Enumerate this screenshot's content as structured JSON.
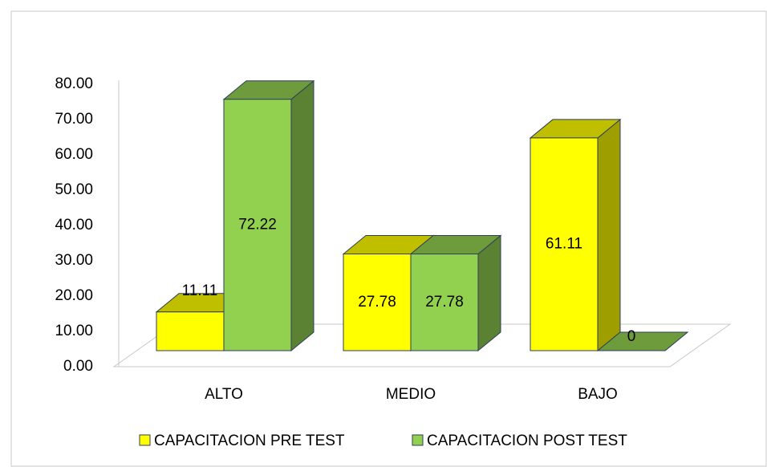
{
  "chart_data": {
    "type": "bar3d",
    "categories": [
      "ALTO",
      "MEDIO",
      "BAJO"
    ],
    "series": [
      {
        "name": "CAPACITACION PRE TEST",
        "color": "#ffff00",
        "values": [
          11.11,
          27.78,
          61.11
        ]
      },
      {
        "name": "CAPACITACION POST TEST",
        "color": "#92d050",
        "values": [
          72.22,
          27.78,
          0
        ]
      }
    ],
    "ylim": [
      0,
      80
    ],
    "yticks": [
      {
        "value": 0,
        "label": "0.00"
      },
      {
        "value": 10,
        "label": "10.00"
      },
      {
        "value": 20,
        "label": "20.00"
      },
      {
        "value": 30,
        "label": "30.00"
      },
      {
        "value": 40,
        "label": "40.00"
      },
      {
        "value": 50,
        "label": "50.00"
      },
      {
        "value": 60,
        "label": "60.00"
      },
      {
        "value": 70,
        "label": "70.00"
      },
      {
        "value": 80,
        "label": "80.00"
      }
    ],
    "legend": "bottom"
  }
}
